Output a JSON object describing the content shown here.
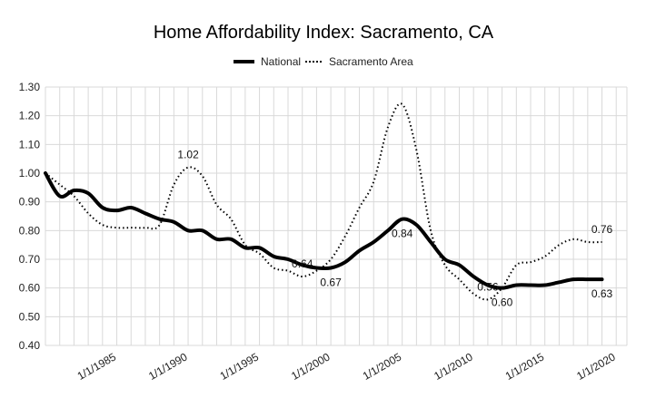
{
  "chart_data": {
    "type": "line",
    "title": "Home Affordability Index: Sacramento, CA",
    "xlabel": "",
    "ylabel": "",
    "ylim": [
      0.4,
      1.3
    ],
    "y_ticks": [
      "0.40",
      "0.50",
      "0.60",
      "0.70",
      "0.80",
      "0.90",
      "1.00",
      "1.10",
      "1.20",
      "1.30"
    ],
    "x_ticks": [
      "1/1/1985",
      "1/1/1990",
      "1/1/1995",
      "1/1/2000",
      "1/1/2005",
      "1/1/2010",
      "1/1/2015",
      "1/1/2020"
    ],
    "grid": true,
    "legend_position": "top",
    "series": [
      {
        "name": "National",
        "style": "solid",
        "color": "#000000",
        "points": [
          [
            "1/1/1980",
            1.0
          ],
          [
            "1/1/1981",
            0.92
          ],
          [
            "1/1/1982",
            0.94
          ],
          [
            "1/1/1983",
            0.93
          ],
          [
            "1/1/1984",
            0.88
          ],
          [
            "1/1/1985",
            0.87
          ],
          [
            "1/1/1986",
            0.88
          ],
          [
            "1/1/1987",
            0.86
          ],
          [
            "1/1/1988",
            0.84
          ],
          [
            "1/1/1989",
            0.83
          ],
          [
            "1/1/1990",
            0.8
          ],
          [
            "1/1/1991",
            0.8
          ],
          [
            "1/1/1992",
            0.77
          ],
          [
            "1/1/1993",
            0.77
          ],
          [
            "1/1/1994",
            0.74
          ],
          [
            "1/1/1995",
            0.74
          ],
          [
            "1/1/1996",
            0.71
          ],
          [
            "1/1/1997",
            0.7
          ],
          [
            "1/1/1998",
            0.68
          ],
          [
            "1/1/1999",
            0.67
          ],
          [
            "1/1/2000",
            0.67
          ],
          [
            "1/1/2001",
            0.69
          ],
          [
            "1/1/2002",
            0.73
          ],
          [
            "1/1/2003",
            0.76
          ],
          [
            "1/1/2004",
            0.8
          ],
          [
            "1/1/2005",
            0.84
          ],
          [
            "1/1/2006",
            0.82
          ],
          [
            "1/1/2007",
            0.76
          ],
          [
            "1/1/2008",
            0.7
          ],
          [
            "1/1/2009",
            0.68
          ],
          [
            "1/1/2010",
            0.64
          ],
          [
            "1/1/2011",
            0.61
          ],
          [
            "1/1/2012",
            0.6
          ],
          [
            "1/1/2013",
            0.61
          ],
          [
            "1/1/2014",
            0.61
          ],
          [
            "1/1/2015",
            0.61
          ],
          [
            "1/1/2016",
            0.62
          ],
          [
            "1/1/2017",
            0.63
          ],
          [
            "1/1/2018",
            0.63
          ],
          [
            "1/1/2019",
            0.63
          ]
        ]
      },
      {
        "name": "Sacramento Area",
        "style": "dotted",
        "color": "#000000",
        "points": [
          [
            "1/1/1980",
            1.0
          ],
          [
            "1/1/1981",
            0.96
          ],
          [
            "1/1/1982",
            0.92
          ],
          [
            "1/1/1983",
            0.86
          ],
          [
            "1/1/1984",
            0.82
          ],
          [
            "1/1/1985",
            0.81
          ],
          [
            "1/1/1986",
            0.81
          ],
          [
            "1/1/1987",
            0.81
          ],
          [
            "1/1/1988",
            0.82
          ],
          [
            "1/1/1989",
            0.96
          ],
          [
            "1/1/1990",
            1.02
          ],
          [
            "1/1/1991",
            0.99
          ],
          [
            "1/1/1992",
            0.89
          ],
          [
            "1/1/1993",
            0.84
          ],
          [
            "1/1/1994",
            0.75
          ],
          [
            "1/1/1995",
            0.72
          ],
          [
            "1/1/1996",
            0.67
          ],
          [
            "1/1/1997",
            0.66
          ],
          [
            "1/1/1998",
            0.64
          ],
          [
            "1/1/1999",
            0.66
          ],
          [
            "1/1/2000",
            0.7
          ],
          [
            "1/1/2001",
            0.78
          ],
          [
            "1/1/2002",
            0.88
          ],
          [
            "1/1/2003",
            0.97
          ],
          [
            "1/1/2004",
            1.16
          ],
          [
            "1/1/2005",
            1.24
          ],
          [
            "1/1/2006",
            1.08
          ],
          [
            "1/1/2007",
            0.8
          ],
          [
            "1/1/2008",
            0.68
          ],
          [
            "1/1/2009",
            0.63
          ],
          [
            "1/1/2010",
            0.58
          ],
          [
            "1/1/2011",
            0.56
          ],
          [
            "1/1/2012",
            0.6
          ],
          [
            "1/1/2013",
            0.68
          ],
          [
            "1/1/2014",
            0.69
          ],
          [
            "1/1/2015",
            0.71
          ],
          [
            "1/1/2016",
            0.75
          ],
          [
            "1/1/2017",
            0.77
          ],
          [
            "1/1/2018",
            0.76
          ],
          [
            "1/1/2019",
            0.76
          ]
        ]
      }
    ],
    "annotations": [
      {
        "text": "1.02",
        "date": "1/1/1990",
        "value": 1.02,
        "series": "Sacramento Area",
        "place": "above"
      },
      {
        "text": "0.64",
        "date": "1/1/1998",
        "value": 0.64,
        "series": "Sacramento Area",
        "place": "above"
      },
      {
        "text": "0.67",
        "date": "1/1/2000",
        "value": 0.67,
        "series": "National",
        "place": "below"
      },
      {
        "text": "0.84",
        "date": "1/1/2005",
        "value": 0.84,
        "series": "National",
        "place": "below"
      },
      {
        "text": "0.56",
        "date": "1/1/2011",
        "value": 0.56,
        "series": "Sacramento Area",
        "place": "above"
      },
      {
        "text": "0.60",
        "date": "1/1/2012",
        "value": 0.6,
        "series": "National",
        "place": "below"
      },
      {
        "text": "0.76",
        "date": "1/1/2019",
        "value": 0.76,
        "series": "Sacramento Area",
        "place": "above"
      },
      {
        "text": "0.63",
        "date": "1/1/2019",
        "value": 0.63,
        "series": "National",
        "place": "below"
      }
    ]
  }
}
